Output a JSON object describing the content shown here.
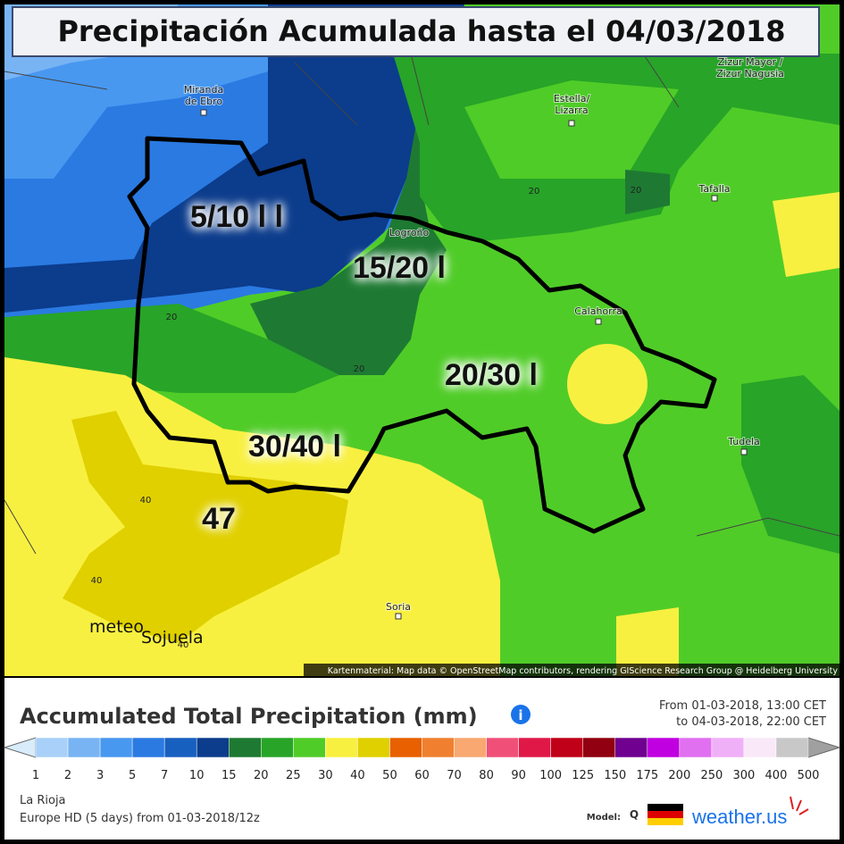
{
  "title": "Precipitación Acumulada hasta el 04/03/2018",
  "places": {
    "miranda": [
      "Miranda",
      "de Ebro"
    ],
    "zizur": [
      "Zizur Mayor /",
      "Zizur Nagusia"
    ],
    "estella": [
      "Estella/",
      "Lizarra"
    ],
    "tafalla": [
      "Tafalla"
    ],
    "logrono": [
      "Logroño"
    ],
    "calahorra": [
      "Calahorra"
    ],
    "tudela": [
      "Tudela"
    ],
    "soria": [
      "Soria"
    ]
  },
  "contours": [
    "20",
    "20",
    "20",
    "20",
    "40",
    "40",
    "40"
  ],
  "zones": [
    "5/10 l l",
    "15/20 l",
    "20/30 l",
    "30/40 l",
    "47"
  ],
  "watermark": [
    "meteo",
    "Sojuela"
  ],
  "attribution": "Kartenmaterial: Map data © OpenStreetMap contributors, rendering GIScience Research Group @ Heidelberg University",
  "legend": {
    "title": "Accumulated Total Precipitation (mm)",
    "period": [
      "From 01-03-2018, 13:00 CET",
      "to 04-03-2018, 22:00 CET"
    ],
    "labels": [
      1,
      2,
      3,
      5,
      7,
      10,
      15,
      20,
      25,
      30,
      40,
      50,
      60,
      70,
      80,
      90,
      100,
      125,
      150,
      175,
      200,
      250,
      300,
      400,
      500
    ],
    "colors": [
      "#a8d0f8",
      "#78b4f4",
      "#4898f0",
      "#2a7ae2",
      "#1860c0",
      "#0c3c8c",
      "#1e7a32",
      "#28a428",
      "#50cc28",
      "#f8f040",
      "#e0d000",
      "#e86000",
      "#f08030",
      "#f8a870",
      "#f05078",
      "#e01848",
      "#c00018",
      "#900010",
      "#700090",
      "#c000e0",
      "#e070f0",
      "#f0b0f8",
      "#f8e8f8",
      "#c8c8c8"
    ],
    "under_color": "#d8ecfc",
    "over_color": "#a0a0a0"
  },
  "footer": {
    "region": "La Rioja",
    "model_run": "Europe HD (5 days) from 01-03-2018/12z",
    "model_label": "Model:",
    "brand": "weather.us"
  }
}
